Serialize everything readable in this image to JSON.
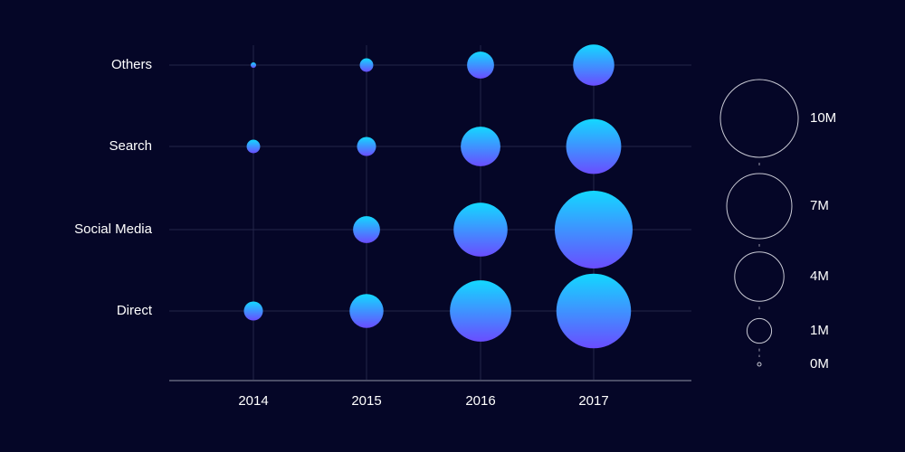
{
  "colors": {
    "background": "#050627",
    "bubble_top": "#13d8ff",
    "bubble_bottom": "#6a4dff",
    "grid": "#23264a",
    "axis": "#4a4d66",
    "text": "#ffffff"
  },
  "chart_data": {
    "type": "scatter",
    "title": "",
    "xlabel": "",
    "ylabel": "",
    "x": [
      "2014",
      "2015",
      "2016",
      "2017"
    ],
    "categories": [
      "Others",
      "Search",
      "Social Media",
      "Direct"
    ],
    "series": [
      {
        "name": "Others",
        "values": [
          0.05,
          0.3,
          1.2,
          2.8
        ]
      },
      {
        "name": "Search",
        "values": [
          0.3,
          0.6,
          2.6,
          5.0
        ]
      },
      {
        "name": "Social Media",
        "values": [
          0,
          1.2,
          4.8,
          10.0
        ]
      },
      {
        "name": "Direct",
        "values": [
          0.6,
          1.9,
          6.2,
          9.2
        ]
      }
    ],
    "legend": {
      "placement": "right",
      "entries": [
        {
          "label": "10M",
          "value": 10
        },
        {
          "label": "7M",
          "value": 7
        },
        {
          "label": "4M",
          "value": 4
        },
        {
          "label": "1M",
          "value": 1
        },
        {
          "label": "0M",
          "value": 0
        }
      ]
    },
    "grid": true
  }
}
